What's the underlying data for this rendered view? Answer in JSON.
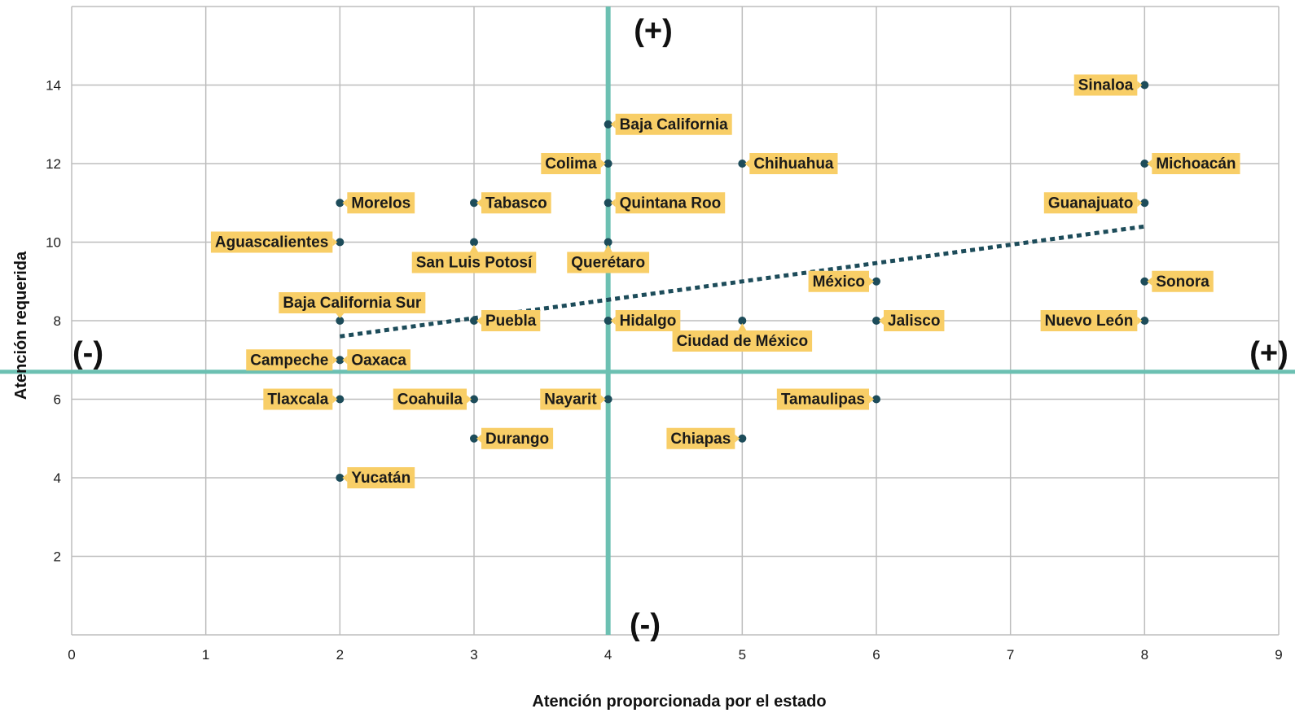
{
  "chart_data": {
    "type": "scatter",
    "xlabel": "Atención proporcionada por el estado",
    "ylabel": "Atención requerida",
    "xlim": [
      0,
      9
    ],
    "ylim": [
      0,
      16
    ],
    "xticks": [
      "0",
      "1",
      "2",
      "3",
      "4",
      "5",
      "6",
      "7",
      "8",
      "9"
    ],
    "yticks": [
      "2",
      "4",
      "6",
      "8",
      "10",
      "12",
      "14"
    ],
    "grid": true,
    "reference_lines": {
      "x": 4,
      "y": 6.7,
      "color": "#6cc0b2"
    },
    "trendline": {
      "x": [
        2,
        8
      ],
      "y": [
        7.6,
        10.4
      ],
      "style": "dotted",
      "color": "#1d4c5a"
    },
    "quadrant_markers": {
      "left": "(-)",
      "right": "(+)",
      "top": "(+)",
      "bottom": "(-)"
    },
    "point_color": "#1d4c5a",
    "label_color": "#f8ce67",
    "points": [
      {
        "name": "Sinaloa",
        "x": 8,
        "y": 14,
        "side": "left"
      },
      {
        "name": "Baja California",
        "x": 4,
        "y": 13,
        "side": "right"
      },
      {
        "name": "Colima",
        "x": 4,
        "y": 12,
        "side": "left"
      },
      {
        "name": "Chihuahua",
        "x": 5,
        "y": 12,
        "side": "right"
      },
      {
        "name": "Michoacán",
        "x": 8,
        "y": 12,
        "side": "right"
      },
      {
        "name": "Morelos",
        "x": 2,
        "y": 11,
        "side": "right"
      },
      {
        "name": "Tabasco",
        "x": 3,
        "y": 11,
        "side": "right"
      },
      {
        "name": "Quintana Roo",
        "x": 4,
        "y": 11,
        "side": "right"
      },
      {
        "name": "Guanajuato",
        "x": 8,
        "y": 11,
        "side": "left"
      },
      {
        "name": "Aguascalientes",
        "x": 2,
        "y": 10,
        "side": "left"
      },
      {
        "name": "San Luis Potosí",
        "x": 3,
        "y": 10,
        "side": "below"
      },
      {
        "name": "Querétaro",
        "x": 4,
        "y": 10,
        "side": "below"
      },
      {
        "name": "México",
        "x": 6,
        "y": 9,
        "side": "left"
      },
      {
        "name": "Sonora",
        "x": 8,
        "y": 9,
        "side": "right"
      },
      {
        "name": "Baja California Sur",
        "x": 2,
        "y": 8,
        "side": "above"
      },
      {
        "name": "Puebla",
        "x": 3,
        "y": 8,
        "side": "right"
      },
      {
        "name": "Hidalgo",
        "x": 4,
        "y": 8,
        "side": "right"
      },
      {
        "name": "Ciudad de México",
        "x": 5,
        "y": 8,
        "side": "below"
      },
      {
        "name": "Jalisco",
        "x": 6,
        "y": 8,
        "side": "right"
      },
      {
        "name": "Nuevo León",
        "x": 8,
        "y": 8,
        "side": "left"
      },
      {
        "name": "Campeche",
        "x": 2,
        "y": 7,
        "side": "left"
      },
      {
        "name": "Oaxaca",
        "x": 2,
        "y": 7,
        "side": "right"
      },
      {
        "name": "Tlaxcala",
        "x": 2,
        "y": 6,
        "side": "left"
      },
      {
        "name": "Coahuila",
        "x": 3,
        "y": 6,
        "side": "left"
      },
      {
        "name": "Nayarit",
        "x": 4,
        "y": 6,
        "side": "left"
      },
      {
        "name": "Tamaulipas",
        "x": 6,
        "y": 6,
        "side": "left"
      },
      {
        "name": "Durango",
        "x": 3,
        "y": 5,
        "side": "right"
      },
      {
        "name": "Chiapas",
        "x": 5,
        "y": 5,
        "side": "left"
      },
      {
        "name": "Yucatán",
        "x": 2,
        "y": 4,
        "side": "right"
      }
    ]
  }
}
